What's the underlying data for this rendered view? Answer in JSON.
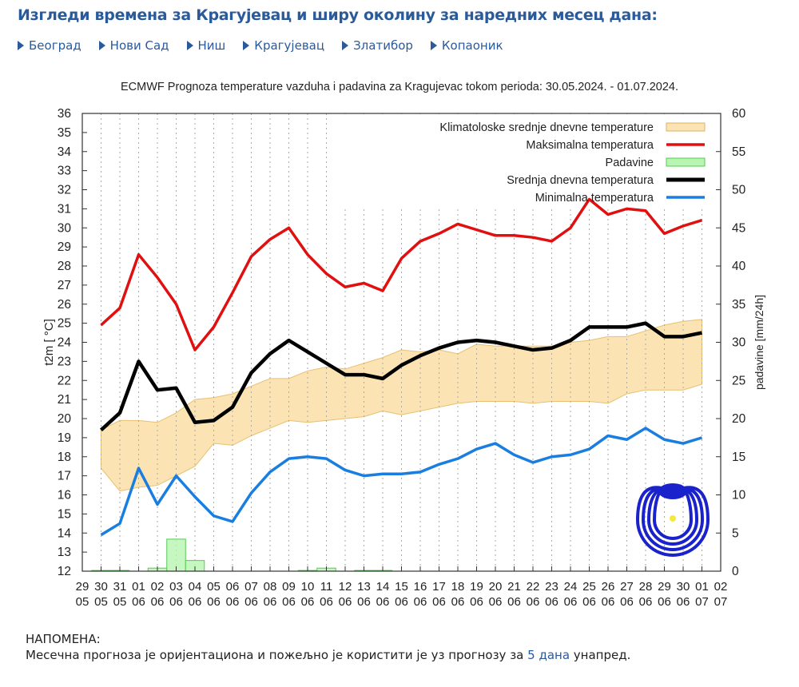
{
  "header": {
    "title": "Изгледи времена за Крагујевац и ширу околину за наредних месец дана:"
  },
  "nav": [
    {
      "label": "Београд"
    },
    {
      "label": "Нови Сад"
    },
    {
      "label": "Ниш"
    },
    {
      "label": "Крагујевац"
    },
    {
      "label": "Златибор"
    },
    {
      "label": "Копаоник"
    }
  ],
  "note": {
    "heading": "НАПОМЕНА:",
    "text_before": "Месечна прогноза је оријентациона и пожељно је користити је уз прогнозу за ",
    "link": "5 дана",
    "text_after": " унапред."
  },
  "chart_data": {
    "type": "line",
    "title": "ECMWF Prognoza temperature  vazduha i padavina za Kragujevac tokom perioda: 30.05.2024. - 01.07.2024.",
    "ylabel": "t2m [ °C]",
    "y2label": "padavine [mm/24h]",
    "ylim": [
      12,
      36
    ],
    "y2lim": [
      0,
      60
    ],
    "legend_position": "top-right",
    "grid": "vertical dotted",
    "x_ticks": [
      "29 05",
      "30 05",
      "31 05",
      "01 06",
      "02 06",
      "03 06",
      "04 06",
      "05 06",
      "06 06",
      "07 06",
      "08 06",
      "09 06",
      "10 06",
      "11 06",
      "12 06",
      "13 06",
      "14 06",
      "15 06",
      "16 06",
      "17 06",
      "18 06",
      "19 06",
      "20 06",
      "21 06",
      "22 06",
      "23 06",
      "24 06",
      "25 06",
      "26 06",
      "27 06",
      "28 06",
      "29 06",
      "30 06",
      "01 07",
      "02 07"
    ],
    "x": [
      "30 05",
      "31 05",
      "01 06",
      "02 06",
      "03 06",
      "04 06",
      "05 06",
      "06 06",
      "07 06",
      "08 06",
      "09 06",
      "10 06",
      "11 06",
      "12 06",
      "13 06",
      "14 06",
      "15 06",
      "16 06",
      "17 06",
      "18 06",
      "19 06",
      "20 06",
      "21 06",
      "22 06",
      "23 06",
      "24 06",
      "25 06",
      "26 06",
      "27 06",
      "28 06",
      "29 06",
      "30 06",
      "01 07"
    ],
    "climate_band": {
      "name": "Klimatoloske srednje dnevne temperature",
      "color": "#fbe3b4",
      "upper": [
        19.4,
        19.9,
        19.9,
        19.8,
        20.3,
        21.0,
        21.1,
        21.3,
        21.7,
        22.1,
        22.1,
        22.5,
        22.7,
        22.6,
        22.9,
        23.2,
        23.6,
        23.5,
        23.6,
        23.4,
        23.9,
        23.8,
        23.8,
        23.8,
        23.8,
        24.0,
        24.1,
        24.3,
        24.3,
        24.6,
        24.9,
        25.1,
        25.2
      ],
      "lower": [
        17.4,
        16.2,
        16.4,
        16.5,
        17.0,
        17.5,
        18.7,
        18.6,
        19.1,
        19.5,
        19.9,
        19.8,
        19.9,
        20.0,
        20.1,
        20.4,
        20.2,
        20.4,
        20.6,
        20.8,
        20.9,
        20.9,
        20.9,
        20.8,
        20.9,
        20.9,
        20.9,
        20.8,
        21.3,
        21.5,
        21.5,
        21.5,
        21.8
      ]
    },
    "series": [
      {
        "name": "Maksimalna temperatura",
        "color": "#e01010",
        "values": [
          24.9,
          25.8,
          28.6,
          27.4,
          26.0,
          23.6,
          24.8,
          26.6,
          28.5,
          29.4,
          30.0,
          28.6,
          27.6,
          26.9,
          27.1,
          26.7,
          28.4,
          29.3,
          29.7,
          30.2,
          29.9,
          29.6,
          29.6,
          29.5,
          29.3,
          30.0,
          31.5,
          30.7,
          31.0,
          30.9,
          29.7,
          30.1,
          30.4
        ]
      },
      {
        "name": "Srednja dnevna temperatura",
        "color": "#000000",
        "values": [
          19.4,
          20.3,
          23.0,
          21.5,
          21.6,
          19.8,
          19.9,
          20.6,
          22.4,
          23.4,
          24.1,
          23.5,
          22.9,
          22.3,
          22.3,
          22.1,
          22.8,
          23.3,
          23.7,
          24.0,
          24.1,
          24.0,
          23.8,
          23.6,
          23.7,
          24.1,
          24.8,
          24.8,
          24.8,
          25.0,
          24.3,
          24.3,
          24.5
        ]
      },
      {
        "name": "Minimalna temperatura",
        "color": "#1a7ee0",
        "values": [
          13.9,
          14.5,
          17.4,
          15.5,
          17.0,
          15.9,
          14.9,
          14.6,
          16.1,
          17.2,
          17.9,
          18.0,
          17.9,
          17.3,
          17.0,
          17.1,
          17.1,
          17.2,
          17.6,
          17.9,
          18.4,
          18.7,
          18.1,
          17.7,
          18.0,
          18.1,
          18.4,
          19.1,
          18.9,
          19.5,
          18.9,
          18.7,
          19.0
        ]
      }
    ],
    "precipitation": {
      "name": "Padavine",
      "color": "#b8f5b0",
      "values": [
        0.1,
        0.1,
        0,
        0.4,
        4.2,
        1.4,
        0,
        0,
        0,
        0,
        0,
        0.1,
        0.4,
        0,
        0.1,
        0.1,
        0,
        0,
        0,
        0,
        0,
        0,
        0,
        0,
        0,
        0,
        0,
        0,
        0,
        0,
        0,
        0,
        0
      ]
    },
    "legend_order": [
      "Klimatoloske srednje dnevne temperature",
      "Maksimalna temperatura",
      "Padavine",
      "Srednja dnevna temperatura",
      "Minimalna temperatura"
    ]
  }
}
